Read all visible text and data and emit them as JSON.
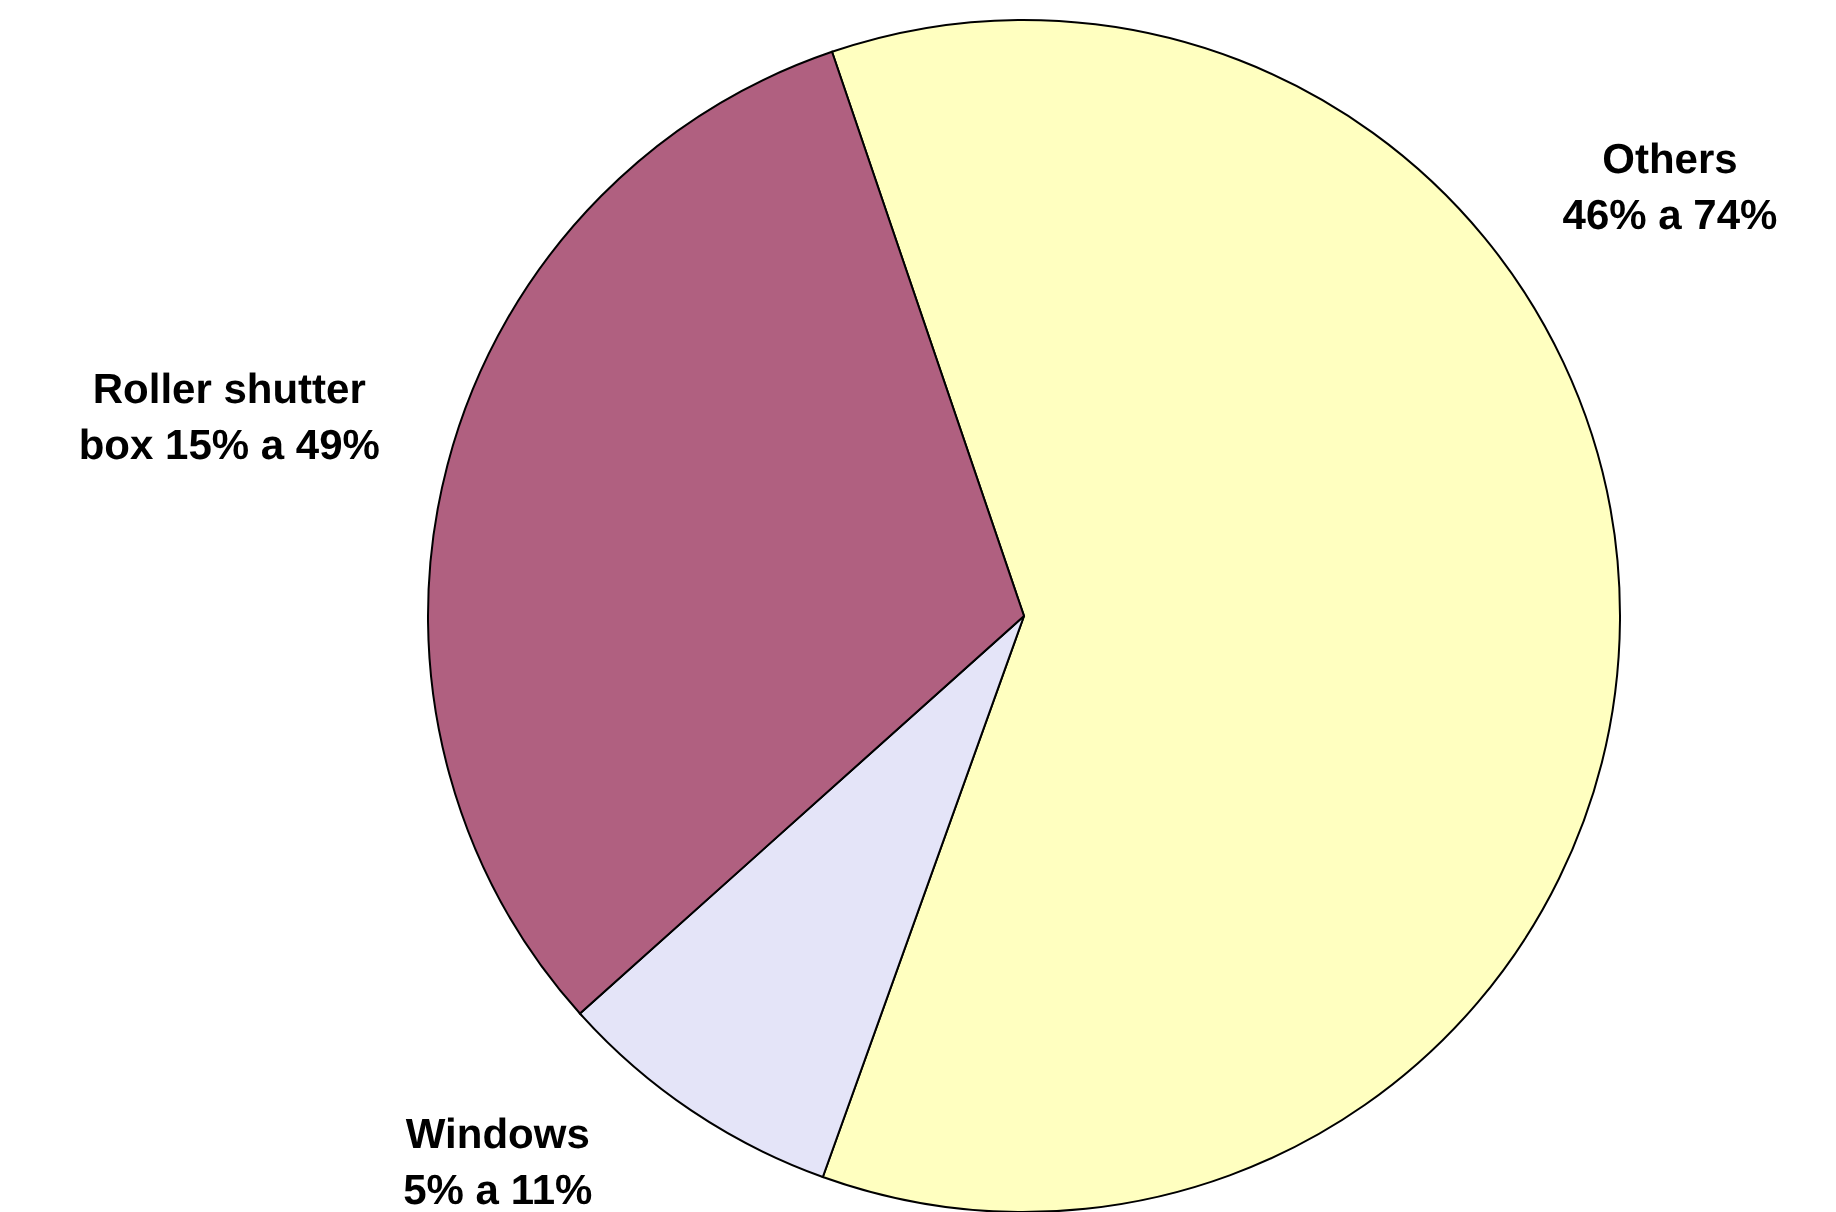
{
  "chart_data": {
    "type": "pie",
    "categories": [
      "Others",
      "Windows",
      "Roller shutter box"
    ],
    "values": [
      60.7,
      7.9,
      31.4
    ],
    "annotations": [
      "46% a 74%",
      "5% a 11%",
      "15% a 49%"
    ],
    "colors": [
      "#ffffc0",
      "#e4e4f8",
      "#b06080"
    ]
  }
}
